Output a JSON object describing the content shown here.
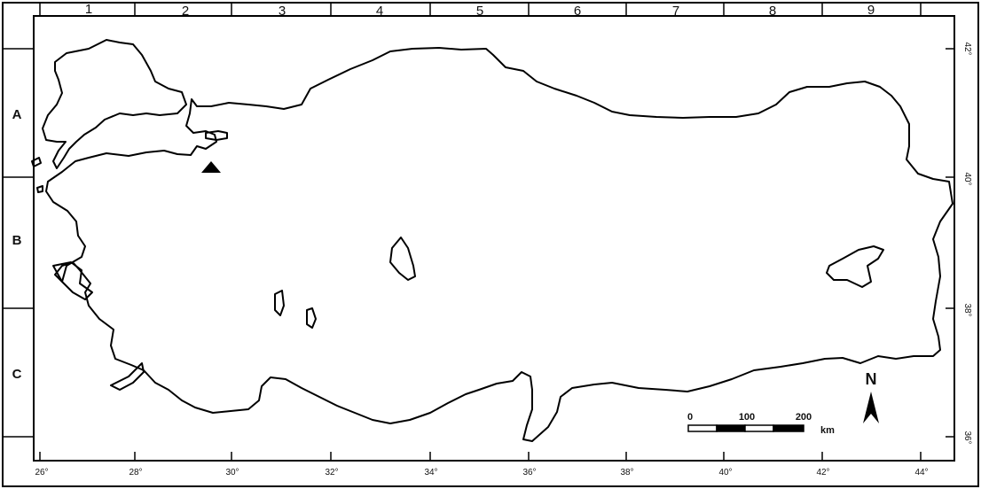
{
  "map": {
    "grid_columns": [
      "1",
      "2",
      "3",
      "4",
      "5",
      "6",
      "7",
      "8",
      "9"
    ],
    "grid_rows": [
      "A",
      "B",
      "C"
    ],
    "longitude_labels": [
      "26°",
      "28°",
      "30°",
      "32°",
      "34°",
      "36°",
      "38°",
      "40°",
      "42°",
      "44°"
    ],
    "latitude_labels": [
      "42°",
      "40°",
      "38°",
      "36°"
    ],
    "north_label": "N",
    "scale_bar": {
      "ticks": [
        "0",
        "100",
        "200"
      ],
      "unit": "km"
    },
    "colors": {
      "outline": "#000000",
      "background": "#ffffff"
    }
  }
}
